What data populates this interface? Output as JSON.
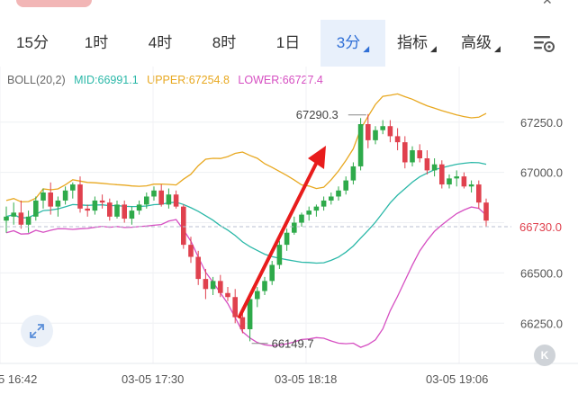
{
  "tabs": [
    {
      "label": "15分",
      "active": false,
      "has_menu": false
    },
    {
      "label": "1时",
      "active": false,
      "has_menu": false
    },
    {
      "label": "4时",
      "active": false,
      "has_menu": false
    },
    {
      "label": "8时",
      "active": false,
      "has_menu": false
    },
    {
      "label": "1日",
      "active": false,
      "has_menu": false
    },
    {
      "label": "3分",
      "active": true,
      "has_menu": true
    },
    {
      "label": "指标",
      "active": false,
      "has_menu": true
    },
    {
      "label": "高级",
      "active": false,
      "has_menu": true
    }
  ],
  "indicator": {
    "name": "BOLL(20,2)",
    "mid_label": "MID:66991.1",
    "upper_label": "UPPER:67254.8",
    "lower_label": "LOWER:66727.4",
    "colors": {
      "mid": "#2bb8a8",
      "upper": "#e8a820",
      "lower": "#d64fc2"
    }
  },
  "chart_data": {
    "type": "candlestick",
    "y_ticks": [
      67250.0,
      67000.0,
      66750.0,
      66500.0,
      66250.0
    ],
    "y_tick_labels": [
      "67250.0",
      "67000.0",
      "66500.0",
      "66250.0"
    ],
    "ylim": [
      66050,
      67410
    ],
    "x_labels": [
      "5 16:42",
      "03-05 17:30",
      "03-05 18:18",
      "03-05 19:06"
    ],
    "current_price_label": "66730.0",
    "current_price": 66730,
    "high_annotation": "67290.3",
    "high_value": 67290.3,
    "low_annotation": "66149.7",
    "low_value": 66149.7,
    "colors": {
      "up": "#2eaa4a",
      "down": "#e0414e",
      "price_line": "#b8bfd0",
      "arrow": "#e81c1c"
    },
    "candles": [
      [
        66760,
        66830,
        66700,
        66780
      ],
      [
        66780,
        66850,
        66740,
        66800
      ],
      [
        66800,
        66860,
        66720,
        66740
      ],
      [
        66740,
        66810,
        66700,
        66780
      ],
      [
        66780,
        66880,
        66760,
        66860
      ],
      [
        66860,
        66920,
        66820,
        66900
      ],
      [
        66900,
        66950,
        66790,
        66830
      ],
      [
        66830,
        66880,
        66780,
        66860
      ],
      [
        66860,
        66930,
        66840,
        66910
      ],
      [
        66910,
        66950,
        66870,
        66940
      ],
      [
        66940,
        66980,
        66800,
        66820
      ],
      [
        66820,
        66840,
        66780,
        66810
      ],
      [
        66810,
        66880,
        66790,
        66860
      ],
      [
        66860,
        66890,
        66820,
        66850
      ],
      [
        66850,
        66870,
        66760,
        66780
      ],
      [
        66780,
        66860,
        66770,
        66840
      ],
      [
        66840,
        66860,
        66750,
        66770
      ],
      [
        66770,
        66830,
        66740,
        66810
      ],
      [
        66810,
        66860,
        66790,
        66840
      ],
      [
        66840,
        66900,
        66820,
        66880
      ],
      [
        66880,
        66930,
        66860,
        66910
      ],
      [
        66910,
        66940,
        66830,
        66840
      ],
      [
        66840,
        66920,
        66820,
        66890
      ],
      [
        66890,
        66910,
        66820,
        66830
      ],
      [
        66830,
        66840,
        66620,
        66640
      ],
      [
        66640,
        66680,
        66550,
        66580
      ],
      [
        66580,
        66610,
        66440,
        66470
      ],
      [
        66470,
        66520,
        66370,
        66420
      ],
      [
        66420,
        66480,
        66390,
        66460
      ],
      [
        66460,
        66490,
        66380,
        66400
      ],
      [
        66400,
        66430,
        66360,
        66380
      ],
      [
        66380,
        66420,
        66250,
        66280
      ],
      [
        66280,
        66330,
        66200,
        66220
      ],
      [
        66220,
        66390,
        66160,
        66370
      ],
      [
        66370,
        66430,
        66330,
        66410
      ],
      [
        66410,
        66480,
        66390,
        66460
      ],
      [
        66460,
        66560,
        66440,
        66540
      ],
      [
        66540,
        66660,
        66520,
        66640
      ],
      [
        66640,
        66720,
        66610,
        66700
      ],
      [
        66700,
        66780,
        66690,
        66750
      ],
      [
        66750,
        66800,
        66730,
        66790
      ],
      [
        66790,
        66830,
        66760,
        66810
      ],
      [
        66810,
        66840,
        66780,
        66830
      ],
      [
        66830,
        66880,
        66810,
        66860
      ],
      [
        66860,
        66900,
        66840,
        66880
      ],
      [
        66880,
        66930,
        66860,
        66910
      ],
      [
        66910,
        66980,
        66890,
        66960
      ],
      [
        66960,
        67050,
        66940,
        67030
      ],
      [
        67030,
        67270,
        67010,
        67240
      ],
      [
        67240,
        67290,
        67120,
        67160
      ],
      [
        67160,
        67230,
        67140,
        67210
      ],
      [
        67210,
        67260,
        67190,
        67230
      ],
      [
        67230,
        67260,
        67150,
        67180
      ],
      [
        67180,
        67220,
        67110,
        67150
      ],
      [
        67150,
        67180,
        67020,
        67050
      ],
      [
        67050,
        67130,
        67030,
        67110
      ],
      [
        67110,
        67140,
        67050,
        67070
      ],
      [
        67070,
        67110,
        66990,
        67010
      ],
      [
        67010,
        67070,
        66980,
        67040
      ],
      [
        67040,
        67060,
        66920,
        66940
      ],
      [
        66940,
        66990,
        66920,
        66970
      ],
      [
        66970,
        67010,
        66930,
        66980
      ],
      [
        66980,
        67000,
        66920,
        66930
      ],
      [
        66930,
        66960,
        66900,
        66940
      ],
      [
        66940,
        66960,
        66820,
        66850
      ],
      [
        66850,
        66870,
        66730,
        66760
      ]
    ]
  }
}
